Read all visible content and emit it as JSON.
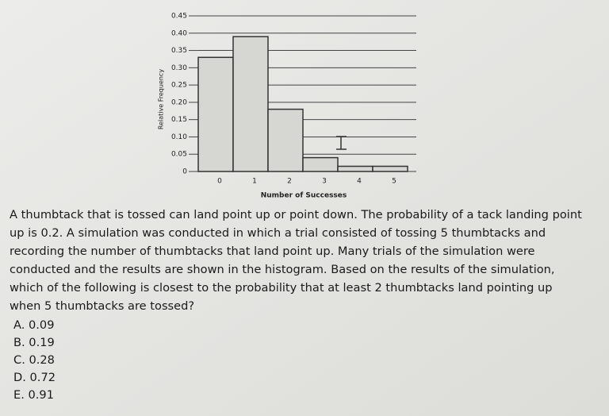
{
  "chart_data": {
    "type": "bar",
    "x_label": "Number of Successes",
    "y_label": "Relative Frequency",
    "categories": [
      "0",
      "1",
      "2",
      "3",
      "4",
      "5"
    ],
    "values": [
      0.33,
      0.39,
      0.18,
      0.04,
      0.015,
      0.015
    ],
    "color": "#d6d6d3",
    "ylim": [
      0,
      0.45
    ],
    "yticks": [
      0,
      0.05,
      {
        "value": 0.1,
        "label": "0.10"
      },
      0.15,
      {
        "value": 0.2,
        "label": "0.20"
      },
      0.25,
      {
        "value": 0.3,
        "label": "0.30"
      },
      0.35,
      {
        "value": 0.4,
        "label": "0.40"
      },
      0.45
    ],
    "grid": true
  },
  "question": {
    "lines": [
      "A thumbtack that is tossed can land point up or point down. The probability of a tack landing point",
      "up is 0.2. A simulation was conducted in which a trial consisted of tossing 5 thumbtacks and",
      "recording the number of thumbtacks that land point up. Many trials of the simulation were",
      "conducted and the results are shown in the histogram. Based on the results of the simulation,",
      "which of the following is closest to the probability that at least 2 thumbtacks land pointing up",
      "when 5 thumbtacks are tossed?"
    ],
    "options": [
      "A. 0.09",
      "B. 0.19",
      "C. 0.28",
      "D. 0.72",
      "E. 0.91"
    ]
  }
}
